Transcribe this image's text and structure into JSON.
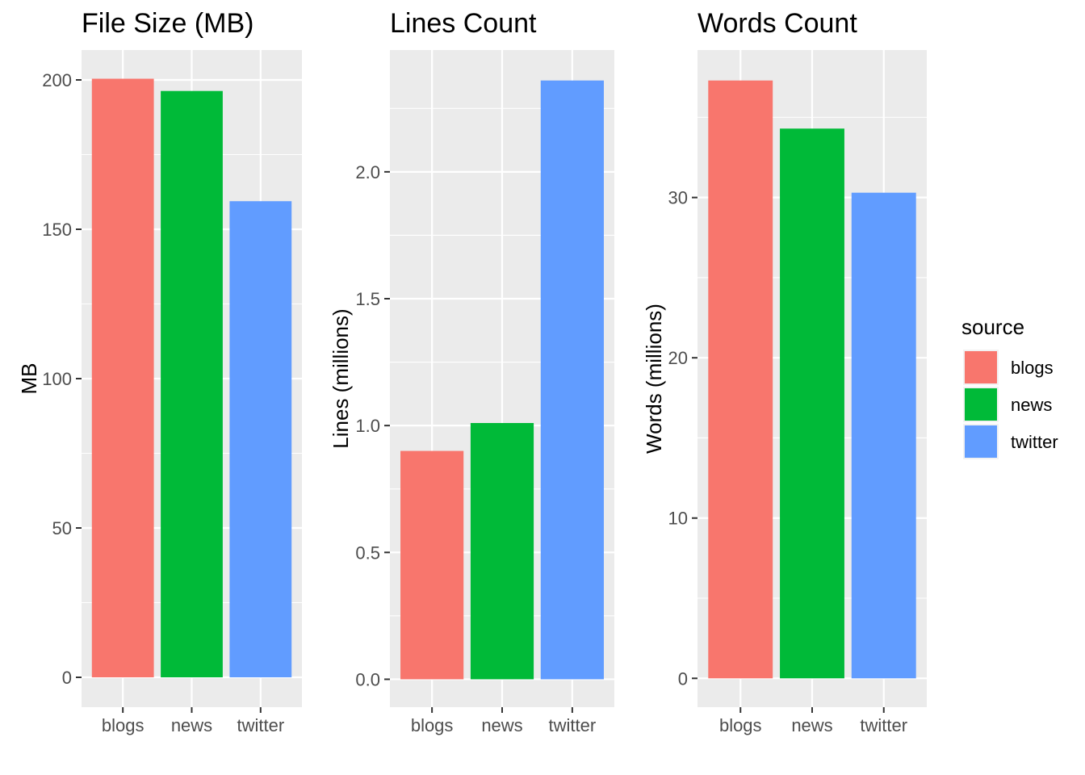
{
  "legend": {
    "title": "source",
    "items": [
      {
        "label": "blogs",
        "color": "#F8766D"
      },
      {
        "label": "news",
        "color": "#00BA38"
      },
      {
        "label": "twitter",
        "color": "#619CFF"
      }
    ]
  },
  "chart_data": [
    {
      "type": "bar",
      "title": "File Size (MB)",
      "xlabel": "",
      "ylabel": "MB",
      "categories": [
        "blogs",
        "news",
        "twitter"
      ],
      "values": [
        200.4,
        196.3,
        159.4
      ],
      "ylim": [
        -10,
        210
      ],
      "yticks": [
        0,
        50,
        100,
        150,
        200
      ],
      "ytick_labels": [
        "0",
        "50",
        "100",
        "150",
        "200"
      ],
      "grid": true
    },
    {
      "type": "bar",
      "title": "Lines Count",
      "xlabel": "",
      "ylabel": "Lines (millions)",
      "categories": [
        "blogs",
        "news",
        "twitter"
      ],
      "values": [
        0.9,
        1.01,
        2.36
      ],
      "ylim": [
        -0.11,
        2.48
      ],
      "yticks": [
        0,
        0.5,
        1.0,
        1.5,
        2.0
      ],
      "ytick_labels": [
        "0.0",
        "0.5",
        "1.0",
        "1.5",
        "2.0"
      ],
      "grid": true
    },
    {
      "type": "bar",
      "title": "Words Count",
      "xlabel": "",
      "ylabel": "Words (millions)",
      "categories": [
        "blogs",
        "news",
        "twitter"
      ],
      "values": [
        37.3,
        34.3,
        30.3
      ],
      "ylim": [
        -1.8,
        39.2
      ],
      "yticks": [
        0,
        10,
        20,
        30
      ],
      "ytick_labels": [
        "0",
        "10",
        "20",
        "30"
      ],
      "grid": true
    }
  ]
}
